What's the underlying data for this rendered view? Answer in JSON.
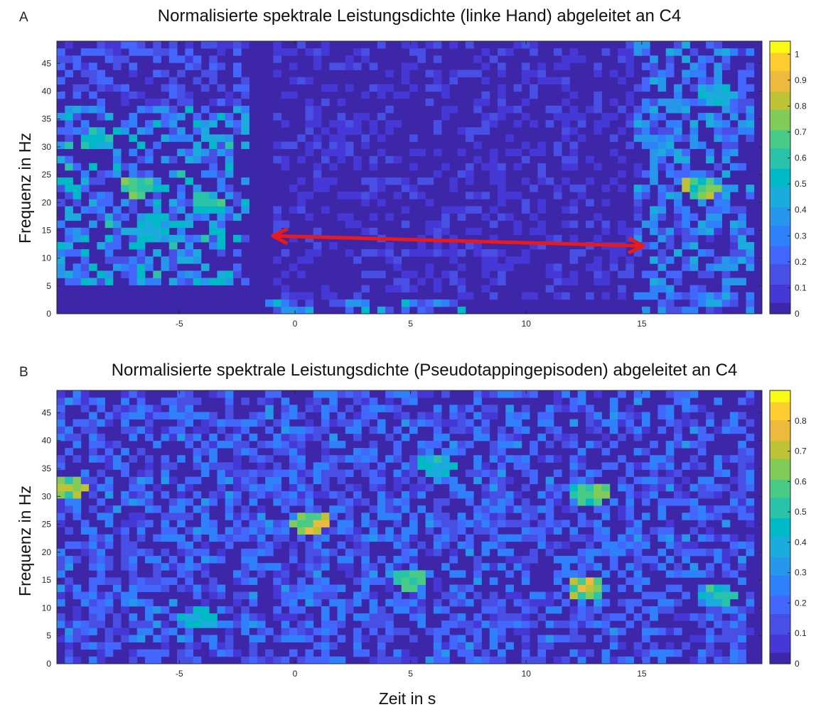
{
  "figure": {
    "xlabel": "Zeit in s"
  },
  "colormap": [
    "#3e26a8",
    "#4538d7",
    "#484fe5",
    "#4367fd",
    "#2f80fa",
    "#2797eb",
    "#1cabdd",
    "#00b9c7",
    "#29c3aa",
    "#48cb86",
    "#81cc59",
    "#bdc334",
    "#ecba3d",
    "#fdcd2f",
    "#f9fb15"
  ],
  "chart_data": [
    {
      "type": "heatmap",
      "panel": "A",
      "title": "Normalisierte spektrale Leistungsdichte (linke Hand) abgeleitet an C4",
      "ylabel": "Frequenz in Hz",
      "xlim": [
        -10.3,
        20.2
      ],
      "ylim": [
        0,
        49
      ],
      "xticks": [
        -5,
        0,
        5,
        10,
        15
      ],
      "yticks": [
        0,
        5,
        10,
        15,
        20,
        25,
        30,
        35,
        40,
        45
      ],
      "grid": {
        "x_bin_s": 0.35,
        "y_bin_hz": 1.3
      },
      "clim": [
        0,
        1.05
      ],
      "colorbar_ticks": [
        "0",
        "0.1",
        "0.2",
        "0.3",
        "0.4",
        "0.5",
        "0.6",
        "0.7",
        "0.8",
        "0.9",
        "1"
      ],
      "intensity_regions": [
        {
          "x": [
            -10.3,
            -2.0
          ],
          "y": [
            5,
            38
          ],
          "level": 0.35
        },
        {
          "x": [
            -10.3,
            -2.0
          ],
          "y": [
            38,
            49
          ],
          "level": 0.15
        },
        {
          "x": [
            -1.5,
            7.5
          ],
          "y": [
            0,
            3
          ],
          "level": 0.35
        },
        {
          "x": [
            -1.0,
            16.0
          ],
          "y": [
            3,
            49
          ],
          "level": 0.08
        },
        {
          "x": [
            15.0,
            20.2
          ],
          "y": [
            0,
            49
          ],
          "level": 0.28
        }
      ],
      "hotspots": [
        {
          "x": -6.8,
          "y": 23,
          "level": 0.75
        },
        {
          "x": -8.5,
          "y": 31.5,
          "level": 0.6
        },
        {
          "x": -3.7,
          "y": 20,
          "level": 0.65
        },
        {
          "x": -6.2,
          "y": 15,
          "level": 0.55
        },
        {
          "x": 17.8,
          "y": 23,
          "level": 0.78
        },
        {
          "x": 18.5,
          "y": 40,
          "level": 0.5
        }
      ],
      "annotation": {
        "type": "double-arrow",
        "color": "#e81a1a",
        "x_from": -0.9,
        "x_to": 15.0,
        "y_from": 14,
        "y_to": 12.2
      }
    },
    {
      "type": "heatmap",
      "panel": "B",
      "title": "Normalisierte spektrale Leistungsdichte (Pseudotappingepisoden) abgeleitet an C4",
      "ylabel": "Frequenz in Hz",
      "xlim": [
        -10.3,
        20.2
      ],
      "ylim": [
        0,
        49
      ],
      "xticks": [
        -5,
        0,
        5,
        10,
        15
      ],
      "yticks": [
        0,
        5,
        10,
        15,
        20,
        25,
        30,
        35,
        40,
        45
      ],
      "grid": {
        "x_bin_s": 0.35,
        "y_bin_hz": 1.3
      },
      "clim": [
        0,
        0.9
      ],
      "colorbar_ticks": [
        "0",
        "0.1",
        "0.2",
        "0.3",
        "0.4",
        "0.5",
        "0.6",
        "0.7",
        "0.8"
      ],
      "intensity_regions": [
        {
          "x": [
            -10.3,
            20.2
          ],
          "y": [
            0,
            49
          ],
          "level": 0.18
        }
      ],
      "hotspots": [
        {
          "x": 0.8,
          "y": 25.5,
          "level": 0.75
        },
        {
          "x": -9.8,
          "y": 32,
          "level": 0.7
        },
        {
          "x": 5.0,
          "y": 15.5,
          "level": 0.6
        },
        {
          "x": 12.8,
          "y": 13.5,
          "level": 0.72
        },
        {
          "x": 13.0,
          "y": 31,
          "level": 0.6
        },
        {
          "x": -4.1,
          "y": 8,
          "level": 0.5
        },
        {
          "x": 18.6,
          "y": 12.5,
          "level": 0.55
        },
        {
          "x": 6.3,
          "y": 36,
          "level": 0.5
        }
      ]
    }
  ]
}
